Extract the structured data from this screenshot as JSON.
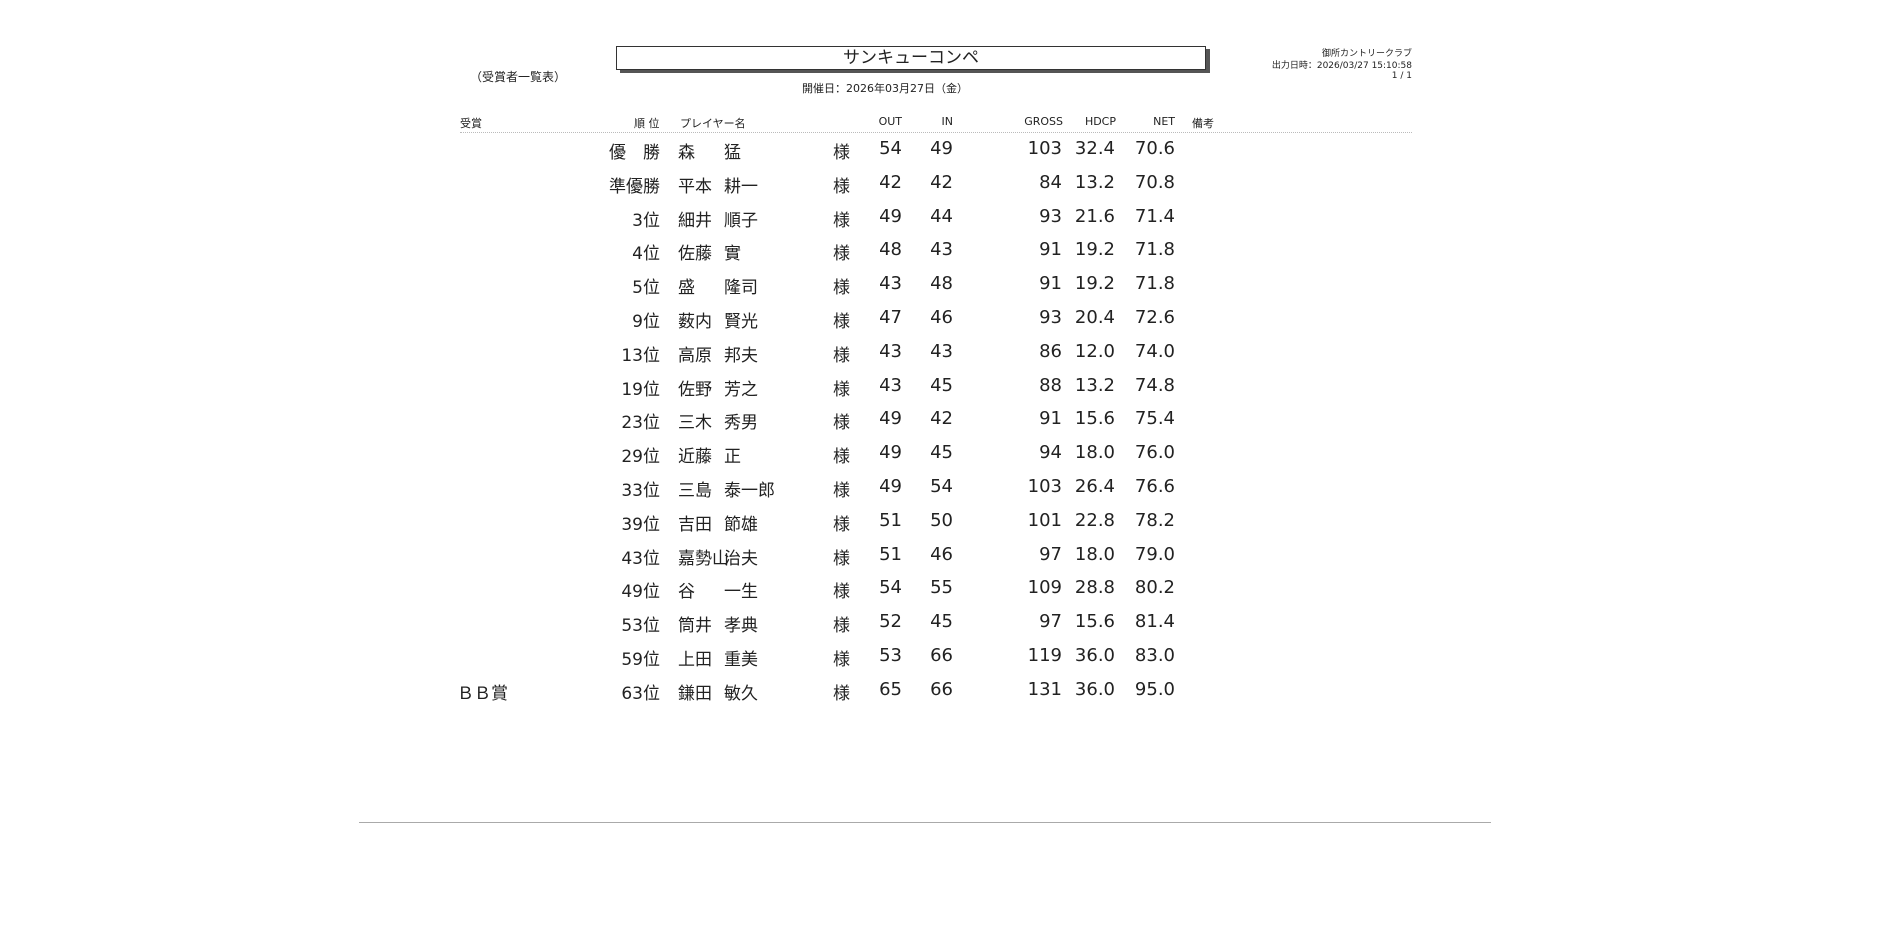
{
  "title": "サンキューコンペ",
  "subtitle": "（受賞者一覧表）",
  "date_line": "開催日：2026年03月27日（金）",
  "club": "御所カントリークラブ",
  "output_time": "出力日時：2026/03/27  15:10:58",
  "page": "1 / 1",
  "headers": {
    "award": "受賞",
    "rank": "順 位",
    "player": "プレイヤー名",
    "out": "OUT",
    "in": "IN",
    "gross": "GROSS",
    "hdcp": "HDCP",
    "net": "NET",
    "note": "備考"
  },
  "rows": [
    {
      "award": "",
      "rank": "優　勝",
      "family": "森",
      "given": "猛",
      "honorific": "様",
      "out": "54",
      "in": "49",
      "gross": "103",
      "hdcp": "32.4",
      "net": "70.6"
    },
    {
      "award": "",
      "rank": "準優勝",
      "family": "平本",
      "given": "耕一",
      "honorific": "様",
      "out": "42",
      "in": "42",
      "gross": "84",
      "hdcp": "13.2",
      "net": "70.8"
    },
    {
      "award": "",
      "rank": "3位",
      "family": "細井",
      "given": "順子",
      "honorific": "様",
      "out": "49",
      "in": "44",
      "gross": "93",
      "hdcp": "21.6",
      "net": "71.4"
    },
    {
      "award": "",
      "rank": "4位",
      "family": "佐藤",
      "given": "實",
      "honorific": "様",
      "out": "48",
      "in": "43",
      "gross": "91",
      "hdcp": "19.2",
      "net": "71.8"
    },
    {
      "award": "",
      "rank": "5位",
      "family": "盛",
      "given": "隆司",
      "honorific": "様",
      "out": "43",
      "in": "48",
      "gross": "91",
      "hdcp": "19.2",
      "net": "71.8"
    },
    {
      "award": "",
      "rank": "9位",
      "family": "薮内",
      "given": "賢光",
      "honorific": "様",
      "out": "47",
      "in": "46",
      "gross": "93",
      "hdcp": "20.4",
      "net": "72.6"
    },
    {
      "award": "",
      "rank": "13位",
      "family": "高原",
      "given": "邦夫",
      "honorific": "様",
      "out": "43",
      "in": "43",
      "gross": "86",
      "hdcp": "12.0",
      "net": "74.0"
    },
    {
      "award": "",
      "rank": "19位",
      "family": "佐野",
      "given": "芳之",
      "honorific": "様",
      "out": "43",
      "in": "45",
      "gross": "88",
      "hdcp": "13.2",
      "net": "74.8"
    },
    {
      "award": "",
      "rank": "23位",
      "family": "三木",
      "given": "秀男",
      "honorific": "様",
      "out": "49",
      "in": "42",
      "gross": "91",
      "hdcp": "15.6",
      "net": "75.4"
    },
    {
      "award": "",
      "rank": "29位",
      "family": "近藤",
      "given": "正",
      "honorific": "様",
      "out": "49",
      "in": "45",
      "gross": "94",
      "hdcp": "18.0",
      "net": "76.0"
    },
    {
      "award": "",
      "rank": "33位",
      "family": "三島",
      "given": "泰一郎",
      "honorific": "様",
      "out": "49",
      "in": "54",
      "gross": "103",
      "hdcp": "26.4",
      "net": "76.6"
    },
    {
      "award": "",
      "rank": "39位",
      "family": "吉田",
      "given": "節雄",
      "honorific": "様",
      "out": "51",
      "in": "50",
      "gross": "101",
      "hdcp": "22.8",
      "net": "78.2"
    },
    {
      "award": "",
      "rank": "43位",
      "family": "嘉勢山",
      "given": "治夫",
      "honorific": "様",
      "out": "51",
      "in": "46",
      "gross": "97",
      "hdcp": "18.0",
      "net": "79.0"
    },
    {
      "award": "",
      "rank": "49位",
      "family": "谷",
      "given": "一生",
      "honorific": "様",
      "out": "54",
      "in": "55",
      "gross": "109",
      "hdcp": "28.8",
      "net": "80.2"
    },
    {
      "award": "",
      "rank": "53位",
      "family": "筒井",
      "given": "孝典",
      "honorific": "様",
      "out": "52",
      "in": "45",
      "gross": "97",
      "hdcp": "15.6",
      "net": "81.4"
    },
    {
      "award": "",
      "rank": "59位",
      "family": "上田",
      "given": "重美",
      "honorific": "様",
      "out": "53",
      "in": "66",
      "gross": "119",
      "hdcp": "36.0",
      "net": "83.0"
    },
    {
      "award": "ＢＢ賞",
      "rank": "63位",
      "family": "鎌田",
      "given": "敏久",
      "honorific": "様",
      "out": "65",
      "in": "66",
      "gross": "131",
      "hdcp": "36.0",
      "net": "95.0"
    }
  ]
}
